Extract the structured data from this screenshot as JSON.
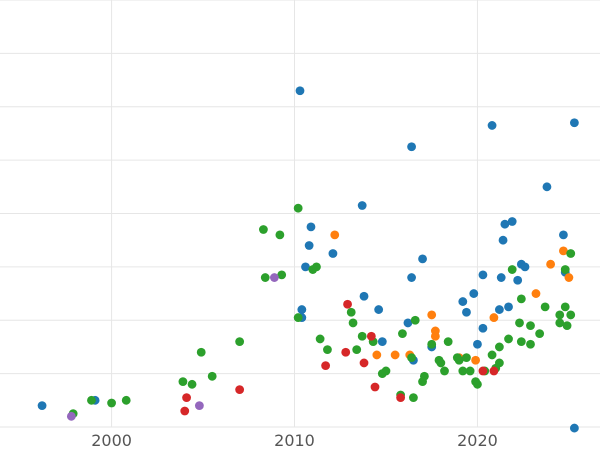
{
  "chart_data": {
    "type": "scatter",
    "title": "",
    "xlabel": "",
    "ylabel": "",
    "xlim": [
      1993.9,
      2026.7
    ],
    "ylim": [
      0,
      8
    ],
    "grid": true,
    "legend": "none",
    "x_ticks": [
      "2000",
      "2010",
      "2020"
    ],
    "series": [
      {
        "color": "#1f77b4",
        "points": [
          [
            1996.2,
            0.4
          ],
          [
            1999.1,
            0.5
          ],
          [
            2010.3,
            6.3
          ],
          [
            2010.4,
            2.2
          ],
          [
            2010.4,
            2.05
          ],
          [
            2010.6,
            3.0
          ],
          [
            2010.8,
            3.4
          ],
          [
            2010.9,
            3.75
          ],
          [
            2012.1,
            3.25
          ],
          [
            2013.7,
            4.15
          ],
          [
            2013.8,
            2.45
          ],
          [
            2014.6,
            2.2
          ],
          [
            2014.8,
            1.6
          ],
          [
            2016.2,
            1.95
          ],
          [
            2016.4,
            2.8
          ],
          [
            2016.4,
            5.25
          ],
          [
            2016.5,
            1.25
          ],
          [
            2017.0,
            3.15
          ],
          [
            2017.5,
            1.5
          ],
          [
            2019.2,
            2.35
          ],
          [
            2019.4,
            2.15
          ],
          [
            2019.8,
            2.5
          ],
          [
            2020.0,
            1.55
          ],
          [
            2020.3,
            1.85
          ],
          [
            2020.3,
            2.85
          ],
          [
            2020.8,
            5.65
          ],
          [
            2021.2,
            2.2
          ],
          [
            2021.3,
            2.8
          ],
          [
            2021.4,
            3.5
          ],
          [
            2021.5,
            3.8
          ],
          [
            2021.7,
            2.25
          ],
          [
            2021.9,
            3.85
          ],
          [
            2022.2,
            2.75
          ],
          [
            2022.4,
            3.05
          ],
          [
            2022.6,
            3.0
          ],
          [
            2023.8,
            4.5
          ],
          [
            2024.7,
            3.6
          ],
          [
            2024.8,
            2.9
          ],
          [
            2025.3,
            5.7
          ],
          [
            2025.3,
            -0.02
          ]
        ]
      },
      {
        "color": "#ff7f0e",
        "points": [
          [
            2012.2,
            3.6
          ],
          [
            2014.5,
            1.35
          ],
          [
            2015.5,
            1.35
          ],
          [
            2016.3,
            1.35
          ],
          [
            2017.5,
            2.1
          ],
          [
            2017.7,
            1.8
          ],
          [
            2017.7,
            1.7
          ],
          [
            2019.0,
            1.3
          ],
          [
            2019.9,
            1.25
          ],
          [
            2020.9,
            2.05
          ],
          [
            2023.2,
            2.5
          ],
          [
            2024.0,
            3.05
          ],
          [
            2024.7,
            3.3
          ],
          [
            2025.0,
            2.8
          ]
        ]
      },
      {
        "color": "#2ca02c",
        "points": [
          [
            1997.9,
            0.25
          ],
          [
            1998.9,
            0.5
          ],
          [
            2000.0,
            0.45
          ],
          [
            2000.8,
            0.5
          ],
          [
            2003.9,
            0.85
          ],
          [
            2004.4,
            0.8
          ],
          [
            2004.9,
            1.4
          ],
          [
            2005.5,
            0.95
          ],
          [
            2007.0,
            1.6
          ],
          [
            2008.3,
            3.7
          ],
          [
            2008.4,
            2.8
          ],
          [
            2009.2,
            3.6
          ],
          [
            2009.3,
            2.85
          ],
          [
            2010.2,
            4.1
          ],
          [
            2010.2,
            2.05
          ],
          [
            2011.0,
            2.95
          ],
          [
            2011.2,
            3.0
          ],
          [
            2011.4,
            1.65
          ],
          [
            2011.8,
            1.45
          ],
          [
            2013.1,
            2.15
          ],
          [
            2013.2,
            1.95
          ],
          [
            2013.4,
            1.45
          ],
          [
            2013.7,
            1.7
          ],
          [
            2014.3,
            1.6
          ],
          [
            2014.8,
            1.0
          ],
          [
            2015.0,
            1.05
          ],
          [
            2015.8,
            0.6
          ],
          [
            2015.9,
            1.75
          ],
          [
            2016.4,
            1.3
          ],
          [
            2016.5,
            0.55
          ],
          [
            2016.6,
            2.0
          ],
          [
            2017.0,
            0.85
          ],
          [
            2017.1,
            0.95
          ],
          [
            2017.5,
            1.55
          ],
          [
            2017.9,
            1.25
          ],
          [
            2018.0,
            1.2
          ],
          [
            2018.2,
            1.05
          ],
          [
            2018.4,
            1.6
          ],
          [
            2018.9,
            1.3
          ],
          [
            2019.0,
            1.25
          ],
          [
            2019.2,
            1.05
          ],
          [
            2019.4,
            1.3
          ],
          [
            2019.6,
            1.05
          ],
          [
            2019.9,
            0.85
          ],
          [
            2020.0,
            0.8
          ],
          [
            2020.4,
            1.05
          ],
          [
            2020.8,
            1.35
          ],
          [
            2021.0,
            1.1
          ],
          [
            2021.2,
            1.5
          ],
          [
            2021.2,
            1.2
          ],
          [
            2021.7,
            1.65
          ],
          [
            2021.9,
            2.95
          ],
          [
            2022.3,
            1.95
          ],
          [
            2022.4,
            2.4
          ],
          [
            2022.4,
            1.6
          ],
          [
            2022.9,
            1.55
          ],
          [
            2022.9,
            1.9
          ],
          [
            2023.4,
            1.75
          ],
          [
            2023.7,
            2.25
          ],
          [
            2024.5,
            2.1
          ],
          [
            2024.5,
            1.95
          ],
          [
            2024.8,
            2.25
          ],
          [
            2024.9,
            1.9
          ],
          [
            2025.1,
            2.1
          ],
          [
            2025.1,
            3.25
          ],
          [
            2024.8,
            2.95
          ]
        ]
      },
      {
        "color": "#d62728",
        "points": [
          [
            2004.0,
            0.3
          ],
          [
            2004.1,
            0.55
          ],
          [
            2007.0,
            0.7
          ],
          [
            2011.7,
            1.15
          ],
          [
            2012.8,
            1.4
          ],
          [
            2012.9,
            2.3
          ],
          [
            2013.8,
            1.2
          ],
          [
            2014.2,
            1.7
          ],
          [
            2014.4,
            0.75
          ],
          [
            2015.8,
            0.55
          ],
          [
            2020.3,
            1.05
          ],
          [
            2020.9,
            1.05
          ]
        ]
      },
      {
        "color": "#9467bd",
        "points": [
          [
            1997.8,
            0.2
          ],
          [
            2004.8,
            0.4
          ],
          [
            2008.9,
            2.8
          ]
        ]
      }
    ]
  }
}
